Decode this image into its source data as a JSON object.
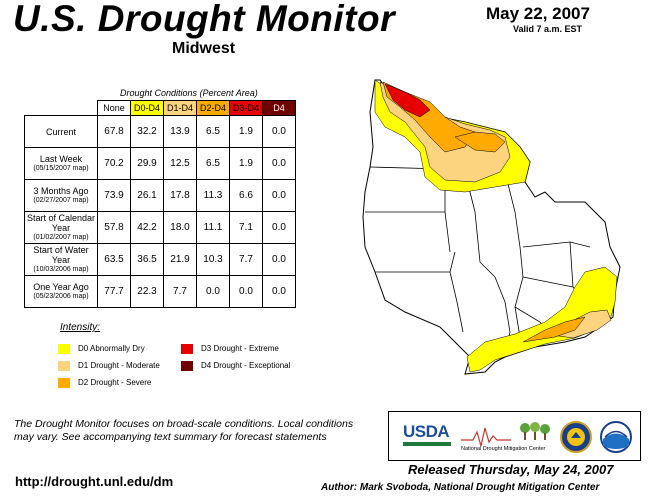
{
  "header": {
    "title": "U.S. Drought Monitor",
    "region": "Midwest",
    "date": "May 22, 2007",
    "valid": "Valid 7 a.m. EST"
  },
  "table": {
    "caption": "Drought Conditions (Percent Area)",
    "columns": [
      {
        "label": "None",
        "color": "#ffffff"
      },
      {
        "label": "D0-D4",
        "color": "#ffff00"
      },
      {
        "label": "D1-D4",
        "color": "#fcd37f"
      },
      {
        "label": "D2-D4",
        "color": "#ffaa00"
      },
      {
        "label": "D3-D4",
        "color": "#e60000"
      },
      {
        "label": "D4",
        "color": "#730000"
      }
    ],
    "rows": [
      {
        "label": "Current",
        "sub": "",
        "values": [
          "67.8",
          "32.2",
          "13.9",
          "6.5",
          "1.9",
          "0.0"
        ]
      },
      {
        "label": "Last Week",
        "sub": "(05/15/2007 map)",
        "values": [
          "70.2",
          "29.9",
          "12.5",
          "6.5",
          "1.9",
          "0.0"
        ]
      },
      {
        "label": "3 Months Ago",
        "sub": "(02/27/2007 map)",
        "values": [
          "73.9",
          "26.1",
          "17.8",
          "11.3",
          "6.6",
          "0.0"
        ]
      },
      {
        "label": "Start of Calendar Year",
        "sub": "(01/02/2007 map)",
        "values": [
          "57.8",
          "42.2",
          "18.0",
          "11.1",
          "7.1",
          "0.0"
        ]
      },
      {
        "label": "Start of Water Year",
        "sub": "(10/03/2006 map)",
        "values": [
          "63.5",
          "36.5",
          "21.9",
          "10.3",
          "7.7",
          "0.0"
        ]
      },
      {
        "label": "One Year Ago",
        "sub": "(05/23/2006 map)",
        "values": [
          "77.7",
          "22.3",
          "7.7",
          "0.0",
          "0.0",
          "0.0"
        ]
      }
    ]
  },
  "legend": {
    "title": "Intensity:",
    "items": [
      {
        "label": "D0 Abnormally Dry",
        "color": "#ffff00"
      },
      {
        "label": "D1 Drought - Moderate",
        "color": "#fcd37f"
      },
      {
        "label": "D2 Drought - Severe",
        "color": "#ffaa00"
      },
      {
        "label": "D3 Drought - Extreme",
        "color": "#e60000"
      },
      {
        "label": "D4 Drought - Exceptional",
        "color": "#730000"
      }
    ]
  },
  "footer": {
    "note": "The Drought Monitor focuses on broad-scale conditions. Local conditions may vary. See accompanying text summary for forecast statements",
    "url": "http://drought.unl.edu/dm",
    "released": "Released Thursday, May 24, 2007",
    "author": "Author: Mark Svoboda, National Drought Mitigation Center"
  },
  "logos": {
    "usda": "USDA",
    "ndmc": "National Drought Mitigation Center"
  }
}
